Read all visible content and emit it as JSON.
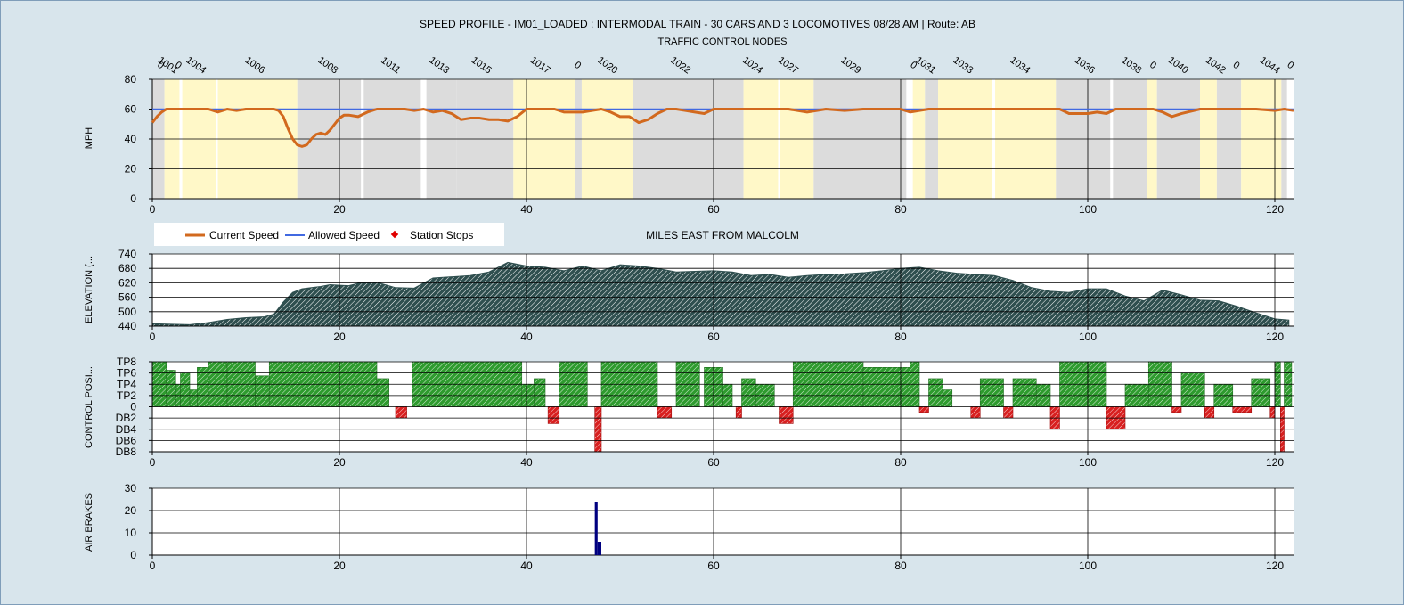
{
  "title": "SPEED PROFILE - IM01_LOADED : INTERMODAL TRAIN - 30 CARS AND 3 LOCOMOTIVES 08/28 AM | Route: AB",
  "nodes_title": "TRAFFIC CONTROL NODES",
  "x_axis_title": "MILES EAST FROM MALCOLM",
  "legend": {
    "current_speed": "Current Speed",
    "allowed_speed": "Allowed Speed",
    "station_stops": "Station Stops"
  },
  "colors": {
    "background": "#d8e5ec",
    "current_speed": "#d2691e",
    "allowed_speed": "#4169e1",
    "station_stops": "#e00000",
    "block_yellow": "#fff8c8",
    "block_grey": "#dcdcdc",
    "elevation": "#2f4f4f",
    "throttle": "#2e9b2e",
    "dynamic_brake": "#d82020",
    "air_brakes": "#000080"
  },
  "chart_data": [
    {
      "type": "line",
      "name": "speed",
      "ylabel": "MPH",
      "xlim": [
        0,
        122
      ],
      "ylim": [
        0,
        80
      ],
      "x_ticks": [
        0,
        20,
        40,
        60,
        80,
        100,
        120
      ],
      "y_ticks": [
        0,
        20,
        40,
        60,
        80
      ],
      "grid": true,
      "node_labels": [
        {
          "x": 1.5,
          "label": "1001"
        },
        {
          "x": 0.7,
          "label": "0"
        },
        {
          "x": 2.6,
          "label": "0"
        },
        {
          "x": 4.5,
          "label": "1004"
        },
        {
          "x": 10.8,
          "label": "1006"
        },
        {
          "x": 18.6,
          "label": "1008"
        },
        {
          "x": 25.3,
          "label": "1011"
        },
        {
          "x": 30.5,
          "label": "1013"
        },
        {
          "x": 35.0,
          "label": "1015"
        },
        {
          "x": 41.3,
          "label": "1017"
        },
        {
          "x": 45.3,
          "label": "0"
        },
        {
          "x": 48.5,
          "label": "1020"
        },
        {
          "x": 56.3,
          "label": "1022"
        },
        {
          "x": 64.0,
          "label": "1024"
        },
        {
          "x": 67.8,
          "label": "1027"
        },
        {
          "x": 74.5,
          "label": "1029"
        },
        {
          "x": 81.2,
          "label": "0"
        },
        {
          "x": 82.5,
          "label": "1031"
        },
        {
          "x": 86.5,
          "label": "1033"
        },
        {
          "x": 92.6,
          "label": "1034"
        },
        {
          "x": 99.5,
          "label": "1036"
        },
        {
          "x": 104.5,
          "label": "1038"
        },
        {
          "x": 106.8,
          "label": "0"
        },
        {
          "x": 109.5,
          "label": "1040"
        },
        {
          "x": 113.5,
          "label": "1042"
        },
        {
          "x": 115.7,
          "label": "0"
        },
        {
          "x": 119.3,
          "label": "1044"
        },
        {
          "x": 121.5,
          "label": "0"
        }
      ],
      "blocks": [
        {
          "from": 0.0,
          "to": 1.3,
          "color": "grey"
        },
        {
          "from": 1.3,
          "to": 2.9,
          "color": "yellow"
        },
        {
          "from": 3.2,
          "to": 6.8,
          "color": "yellow"
        },
        {
          "from": 7.0,
          "to": 15.5,
          "color": "yellow"
        },
        {
          "from": 15.5,
          "to": 22.3,
          "color": "grey"
        },
        {
          "from": 22.6,
          "to": 28.7,
          "color": "grey"
        },
        {
          "from": 29.3,
          "to": 32.5,
          "color": "grey"
        },
        {
          "from": 32.5,
          "to": 38.6,
          "color": "grey"
        },
        {
          "from": 38.6,
          "to": 45.2,
          "color": "yellow"
        },
        {
          "from": 45.2,
          "to": 45.9,
          "color": "grey"
        },
        {
          "from": 45.9,
          "to": 51.4,
          "color": "yellow"
        },
        {
          "from": 51.4,
          "to": 63.2,
          "color": "grey"
        },
        {
          "from": 63.2,
          "to": 66.9,
          "color": "yellow"
        },
        {
          "from": 67.1,
          "to": 70.7,
          "color": "yellow"
        },
        {
          "from": 70.7,
          "to": 80.6,
          "color": "grey"
        },
        {
          "from": 81.3,
          "to": 82.6,
          "color": "yellow"
        },
        {
          "from": 82.6,
          "to": 84.0,
          "color": "grey"
        },
        {
          "from": 84.0,
          "to": 89.8,
          "color": "yellow"
        },
        {
          "from": 90.1,
          "to": 96.6,
          "color": "yellow"
        },
        {
          "from": 96.6,
          "to": 102.4,
          "color": "grey"
        },
        {
          "from": 102.7,
          "to": 106.3,
          "color": "grey"
        },
        {
          "from": 106.3,
          "to": 107.4,
          "color": "yellow"
        },
        {
          "from": 107.4,
          "to": 112.0,
          "color": "grey"
        },
        {
          "from": 112.0,
          "to": 113.8,
          "color": "yellow"
        },
        {
          "from": 113.8,
          "to": 116.4,
          "color": "grey"
        },
        {
          "from": 116.4,
          "to": 120.7,
          "color": "yellow"
        },
        {
          "from": 120.7,
          "to": 121.3,
          "color": "grey"
        }
      ],
      "series": [
        {
          "name": "Current Speed",
          "x": [
            0,
            0.5,
            1,
            1.5,
            2,
            3,
            4,
            5,
            6,
            7,
            8,
            9,
            10,
            11,
            12,
            13,
            13.5,
            14,
            14.5,
            15,
            15.5,
            16,
            16.5,
            17,
            17.5,
            18,
            18.5,
            19,
            19.5,
            20,
            20.5,
            21,
            22,
            23,
            24,
            25,
            26,
            27,
            28,
            29,
            30,
            31,
            32,
            33,
            34,
            35,
            36,
            37,
            38,
            39,
            40,
            41,
            42,
            43,
            44,
            45,
            46,
            47,
            48,
            49,
            50,
            51,
            52,
            53,
            54,
            55,
            56,
            57,
            58,
            59,
            60,
            62,
            64,
            66,
            68,
            70,
            72,
            74,
            76,
            78,
            80,
            81,
            82,
            83,
            84,
            86,
            88,
            90,
            92,
            94,
            96,
            97,
            98,
            99,
            100,
            101,
            102,
            103,
            104,
            105,
            106,
            107,
            108,
            109,
            110,
            112,
            114,
            116,
            118,
            120,
            121,
            122
          ],
          "y": [
            51,
            55,
            58,
            60,
            60,
            60,
            60,
            60,
            60,
            58,
            60,
            59,
            60,
            60,
            60,
            60,
            59,
            55,
            47,
            40,
            36,
            35,
            36,
            40,
            43,
            44,
            43,
            46,
            50,
            54,
            56,
            56,
            55,
            58,
            60,
            60,
            60,
            60,
            59,
            60,
            58,
            59,
            57,
            53,
            54,
            54,
            53,
            53,
            52,
            55,
            60,
            60,
            60,
            60,
            58,
            58,
            58,
            59,
            60,
            58,
            55,
            55,
            51,
            53,
            57,
            60,
            60,
            59,
            58,
            57,
            60,
            60,
            60,
            60,
            60,
            58,
            60,
            59,
            60,
            60,
            60,
            58,
            59,
            60,
            60,
            60,
            60,
            60,
            60,
            60,
            60,
            60,
            57,
            57,
            57,
            58,
            57,
            60,
            60,
            60,
            60,
            60,
            58,
            55,
            57,
            60,
            60,
            60,
            60,
            59,
            60,
            59
          ]
        },
        {
          "name": "Allowed Speed",
          "x": [
            0,
            122
          ],
          "y": [
            60,
            60
          ]
        }
      ]
    },
    {
      "type": "area",
      "name": "elevation",
      "ylabel": "ELEVATION (...",
      "xlim": [
        0,
        122
      ],
      "ylim": [
        440,
        740
      ],
      "y_ticks": [
        440,
        500,
        560,
        620,
        680,
        740
      ],
      "grid": true,
      "x": [
        0,
        2,
        4,
        6,
        8,
        10,
        12,
        13,
        14,
        15,
        16,
        17,
        18,
        19,
        20,
        21,
        22,
        24,
        26,
        28,
        30,
        32,
        34,
        36,
        38,
        40,
        42,
        44,
        46,
        48,
        50,
        52,
        54,
        56,
        58,
        60,
        62,
        64,
        66,
        68,
        70,
        72,
        74,
        76,
        78,
        80,
        82,
        84,
        86,
        88,
        90,
        92,
        94,
        96,
        98,
        100,
        102,
        104,
        106,
        108,
        110,
        112,
        114,
        116,
        118,
        120,
        121.5
      ],
      "y": [
        450,
        448,
        446,
        455,
        468,
        475,
        479,
        490,
        540,
        580,
        595,
        600,
        605,
        612,
        610,
        608,
        618,
        622,
        600,
        598,
        640,
        645,
        650,
        665,
        705,
        690,
        685,
        670,
        690,
        670,
        695,
        690,
        680,
        665,
        668,
        670,
        665,
        650,
        655,
        643,
        650,
        655,
        657,
        662,
        670,
        680,
        685,
        670,
        660,
        655,
        650,
        630,
        600,
        585,
        580,
        595,
        595,
        565,
        545,
        590,
        570,
        548,
        545,
        522,
        495,
        470,
        465
      ]
    },
    {
      "type": "bar",
      "name": "control_position",
      "ylabel": "CONTROL POSI...",
      "xlim": [
        0,
        122
      ],
      "ylim": [
        -8,
        8
      ],
      "y_ticks": [
        8,
        6,
        4,
        2,
        0,
        -2,
        -4,
        -6,
        -8
      ],
      "y_tick_labels": [
        "TP8",
        "TP6",
        "TP4",
        "TP2",
        "0",
        "DB2",
        "DB4",
        "DB6",
        "DB8"
      ],
      "grid": true,
      "segments": [
        {
          "from": 0.0,
          "to": 1.5,
          "value": 8
        },
        {
          "from": 1.5,
          "to": 2.5,
          "value": 6.5
        },
        {
          "from": 2.5,
          "to": 3.0,
          "value": 4
        },
        {
          "from": 3.0,
          "to": 4.0,
          "value": 6
        },
        {
          "from": 4.0,
          "to": 4.8,
          "value": 3
        },
        {
          "from": 4.8,
          "to": 6.0,
          "value": 7
        },
        {
          "from": 6.0,
          "to": 8.0,
          "value": 8
        },
        {
          "from": 8.0,
          "to": 11.0,
          "value": 8
        },
        {
          "from": 11.0,
          "to": 12.5,
          "value": 5.5
        },
        {
          "from": 12.5,
          "to": 24.0,
          "value": 8
        },
        {
          "from": 24.0,
          "to": 25.3,
          "value": 5
        },
        {
          "from": 26.0,
          "to": 27.2,
          "value": -2
        },
        {
          "from": 27.8,
          "to": 39.5,
          "value": 8
        },
        {
          "from": 39.5,
          "to": 40.8,
          "value": 4
        },
        {
          "from": 40.8,
          "to": 42.0,
          "value": 5
        },
        {
          "from": 42.3,
          "to": 43.5,
          "value": -3
        },
        {
          "from": 43.5,
          "to": 46.5,
          "value": 8
        },
        {
          "from": 47.3,
          "to": 48.0,
          "value": -8
        },
        {
          "from": 48.0,
          "to": 54.0,
          "value": 8
        },
        {
          "from": 54.0,
          "to": 55.5,
          "value": -2
        },
        {
          "from": 56.0,
          "to": 58.5,
          "value": 8
        },
        {
          "from": 59.0,
          "to": 61.0,
          "value": 7
        },
        {
          "from": 61.0,
          "to": 62.0,
          "value": 4
        },
        {
          "from": 62.4,
          "to": 63.0,
          "value": -2
        },
        {
          "from": 63.0,
          "to": 64.5,
          "value": 5
        },
        {
          "from": 64.5,
          "to": 66.5,
          "value": 4
        },
        {
          "from": 67.0,
          "to": 68.5,
          "value": -3
        },
        {
          "from": 68.5,
          "to": 76.0,
          "value": 8
        },
        {
          "from": 76.0,
          "to": 81.0,
          "value": 7
        },
        {
          "from": 81.0,
          "to": 82.0,
          "value": 8
        },
        {
          "from": 82.0,
          "to": 83.0,
          "value": -1
        },
        {
          "from": 83.0,
          "to": 84.5,
          "value": 5
        },
        {
          "from": 84.5,
          "to": 85.5,
          "value": 3
        },
        {
          "from": 87.5,
          "to": 88.5,
          "value": -2
        },
        {
          "from": 88.5,
          "to": 91.0,
          "value": 5
        },
        {
          "from": 91.0,
          "to": 92.0,
          "value": -2
        },
        {
          "from": 92.0,
          "to": 94.5,
          "value": 5
        },
        {
          "from": 94.5,
          "to": 96.0,
          "value": 4
        },
        {
          "from": 96.0,
          "to": 97.0,
          "value": -4
        },
        {
          "from": 97.0,
          "to": 100.0,
          "value": 8
        },
        {
          "from": 100.0,
          "to": 102.0,
          "value": 8
        },
        {
          "from": 102.0,
          "to": 104.0,
          "value": -4
        },
        {
          "from": 104.0,
          "to": 106.5,
          "value": 4
        },
        {
          "from": 106.5,
          "to": 109.0,
          "value": 8
        },
        {
          "from": 109.0,
          "to": 110.0,
          "value": -1
        },
        {
          "from": 110.0,
          "to": 112.5,
          "value": 6
        },
        {
          "from": 112.5,
          "to": 113.5,
          "value": -2
        },
        {
          "from": 113.5,
          "to": 115.5,
          "value": 4
        },
        {
          "from": 115.5,
          "to": 117.5,
          "value": -1
        },
        {
          "from": 117.5,
          "to": 119.5,
          "value": 5
        },
        {
          "from": 119.5,
          "to": 120.0,
          "value": -2
        },
        {
          "from": 120.0,
          "to": 120.6,
          "value": 8
        },
        {
          "from": 120.6,
          "to": 121.0,
          "value": -8
        },
        {
          "from": 121.0,
          "to": 121.8,
          "value": 8
        }
      ]
    },
    {
      "type": "bar",
      "name": "air_brakes",
      "ylabel": "AIR BRAKES",
      "xlim": [
        0,
        122
      ],
      "ylim": [
        0,
        30
      ],
      "y_ticks": [
        0,
        10,
        20,
        30
      ],
      "grid": true,
      "bars": [
        {
          "from": 47.3,
          "to": 47.6,
          "value": 24
        },
        {
          "from": 47.6,
          "to": 48.0,
          "value": 6
        }
      ]
    }
  ]
}
